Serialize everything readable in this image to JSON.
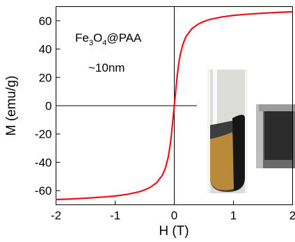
{
  "chart_data": {
    "type": "line",
    "xlabel": "H (T)",
    "ylabel": "M (emu/g)",
    "xlim": [
      -2,
      2
    ],
    "ylim": [
      -70,
      70
    ],
    "x_ticks": [
      "-2",
      "-1",
      "0",
      "1",
      "2"
    ],
    "y_ticks": [
      "-60",
      "-40",
      "-20",
      "0",
      "20",
      "40",
      "60"
    ],
    "grid": false,
    "line_color": "#e8141c",
    "annotation": {
      "formula_parts": [
        "Fe",
        "3",
        "O",
        "4",
        "@PAA"
      ],
      "size": "~10nm"
    },
    "series": [
      {
        "x": [
          -2.0,
          -1.8,
          -1.6,
          -1.4,
          -1.2,
          -1.0,
          -0.8,
          -0.6,
          -0.5,
          -0.4,
          -0.3,
          -0.2,
          -0.15,
          -0.1,
          -0.07,
          -0.05,
          -0.03,
          -0.02,
          -0.01,
          0.0,
          0.01,
          0.02,
          0.03,
          0.05,
          0.07,
          0.1,
          0.15,
          0.2,
          0.3,
          0.4,
          0.5,
          0.6,
          0.8,
          1.0,
          1.2,
          1.4,
          1.6,
          1.8,
          2.0
        ],
        "y": [
          -66.3,
          -66.0,
          -65.6,
          -65.1,
          -64.5,
          -63.8,
          -62.7,
          -60.9,
          -59.5,
          -57.5,
          -54.5,
          -49.0,
          -44.0,
          -36.0,
          -28.0,
          -21.0,
          -13.0,
          -8.5,
          -4.0,
          0.0,
          4.0,
          8.5,
          13.0,
          21.0,
          28.0,
          36.0,
          44.0,
          49.0,
          54.5,
          57.5,
          59.5,
          60.9,
          62.7,
          63.8,
          64.5,
          65.1,
          65.6,
          66.0,
          66.3
        ]
      }
    ]
  },
  "inset_photo": {
    "icons": [
      "test-tube-icon",
      "magnet-icon"
    ]
  }
}
